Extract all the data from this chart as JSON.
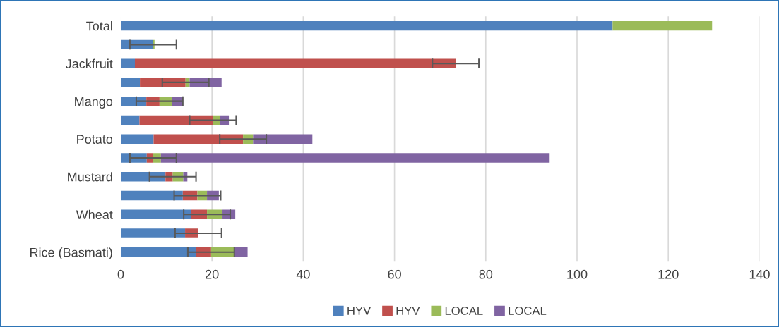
{
  "chart_data": {
    "type": "bar",
    "orientation": "horizontal",
    "stacked": true,
    "categories": [
      "Total",
      null,
      "Jackfruit",
      null,
      "Mango",
      null,
      "Potato",
      null,
      "Mustard",
      null,
      "Wheat",
      null,
      "Rice (Basmati)"
    ],
    "series": [
      {
        "name": "HYV",
        "color": "#4f81bd",
        "values": [
          107.8,
          7.1,
          3.1,
          4.2,
          5.6,
          4.1,
          7.2,
          5.7,
          9.8,
          13.6,
          15.4,
          14.1,
          16.5
        ]
      },
      {
        "name": "HYV",
        "color": "#c0504d",
        "values": [
          0,
          0,
          70.3,
          10.0,
          2.9,
          16.1,
          19.6,
          1.4,
          1.6,
          3.2,
          3.5,
          2.9,
          3.3
        ],
        "errors": [
          null,
          5.1,
          5.1,
          5.1,
          5.1,
          5.1,
          5.1,
          5.1,
          5.1,
          5.1,
          5.1,
          5.1,
          5.1
        ]
      },
      {
        "name": "LOCAL",
        "color": "#9bbb59",
        "values": [
          21.8,
          0.3,
          0,
          0.9,
          2.7,
          1.5,
          2.2,
          1.7,
          2.3,
          2.1,
          3.4,
          0,
          5.2
        ]
      },
      {
        "name": "LOCAL",
        "color": "#8064a2",
        "values": [
          0,
          0,
          0,
          7.0,
          2.3,
          2.0,
          13.0,
          85.2,
          0.9,
          2.6,
          2.8,
          0,
          2.8
        ]
      }
    ],
    "xlim": [
      0,
      140
    ],
    "xticks": [
      0,
      20,
      40,
      60,
      80,
      100,
      120,
      140
    ],
    "grid": "x",
    "legend": "bottom"
  }
}
